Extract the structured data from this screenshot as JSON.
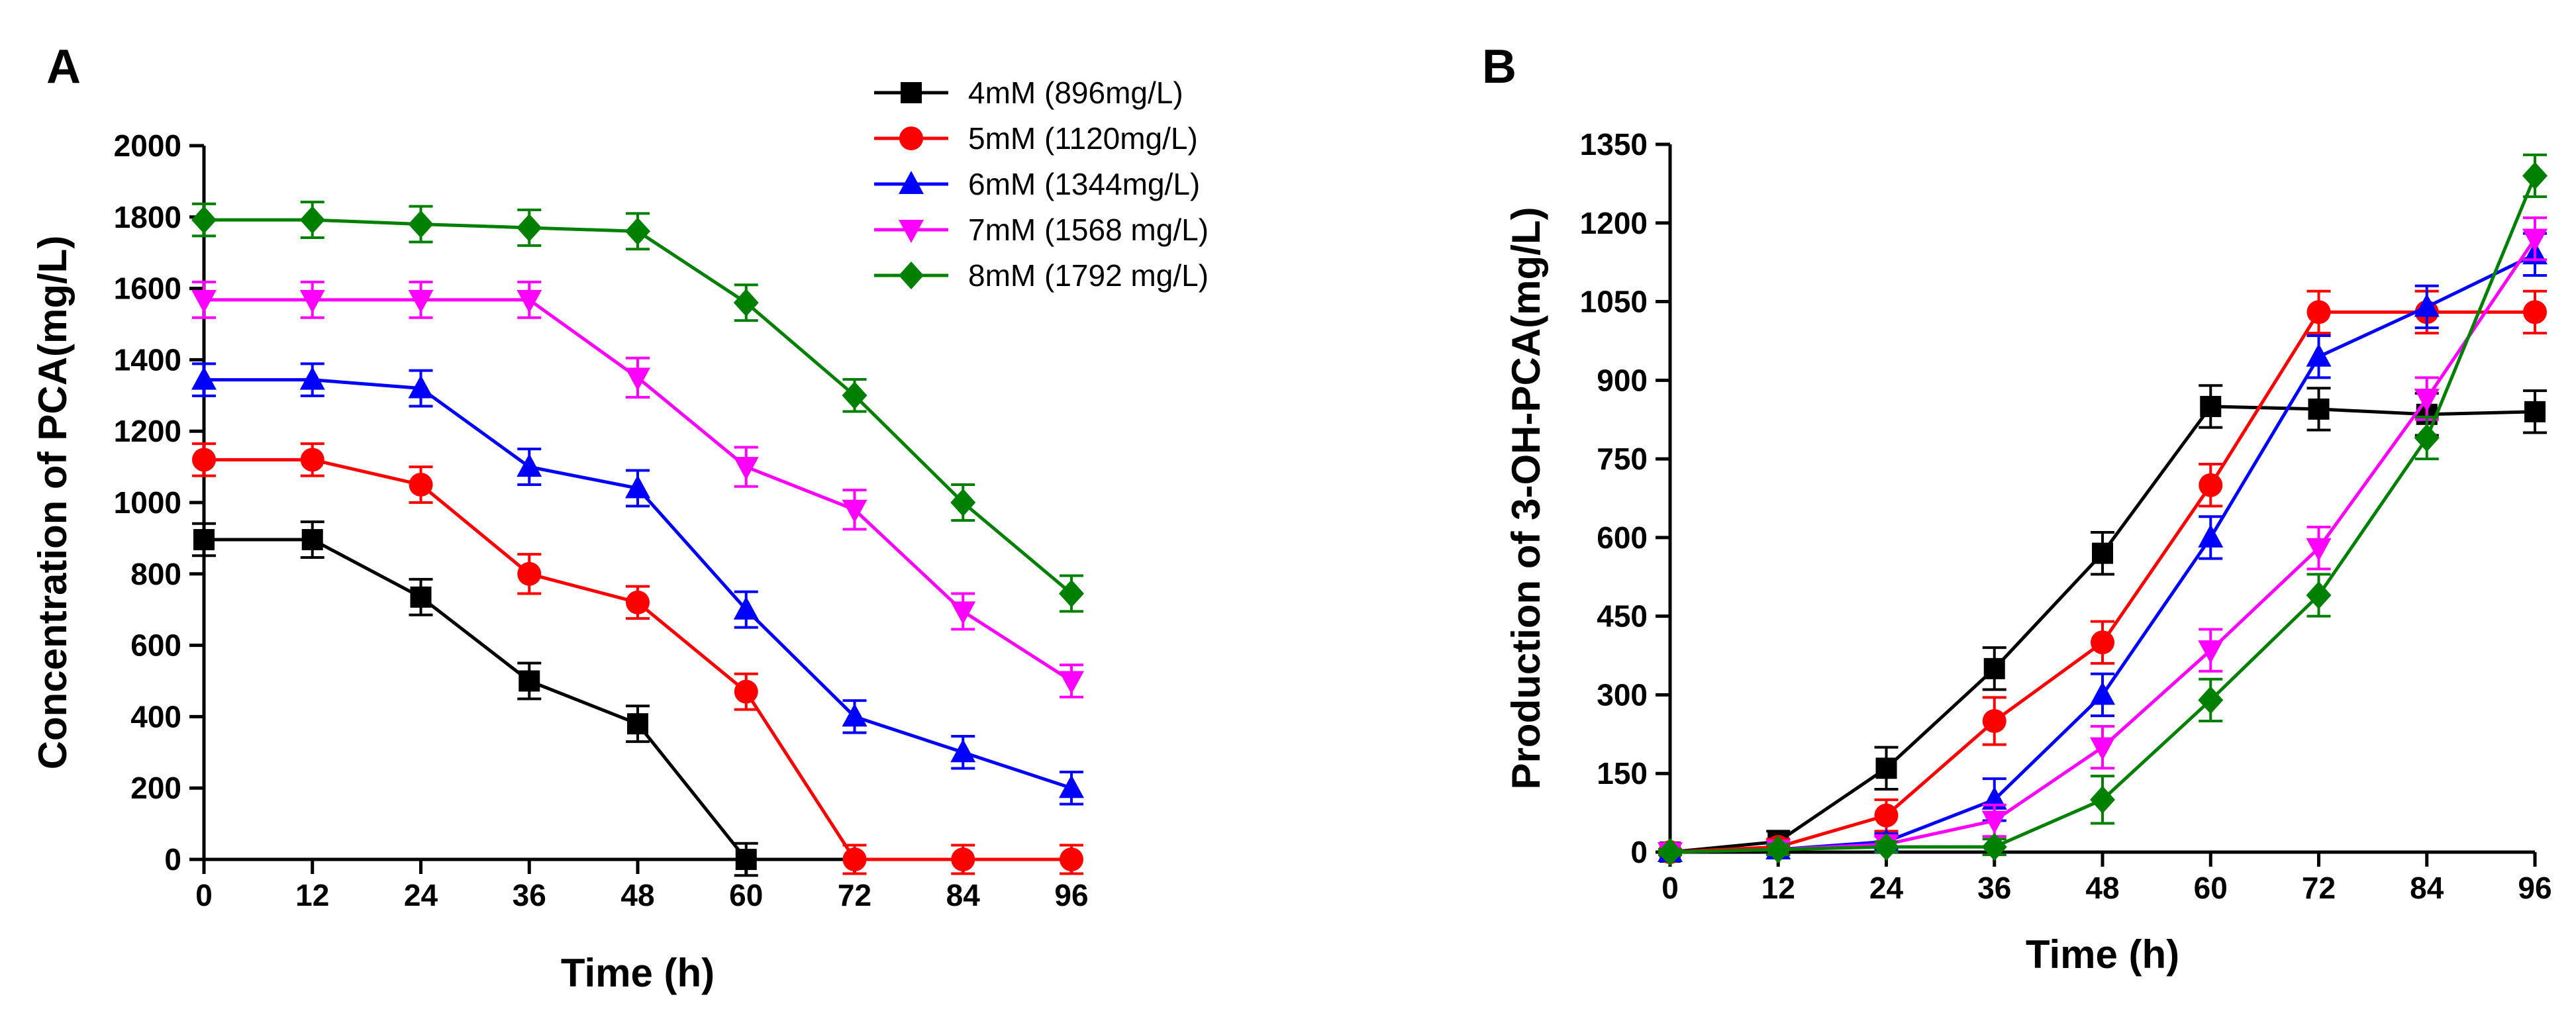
{
  "chart_data": [
    {
      "panel_label": "A",
      "type": "line",
      "xlabel": "Time (h)",
      "ylabel": "Concentration of PCA(mg/L)",
      "x": [
        0,
        12,
        24,
        36,
        48,
        60,
        72,
        84,
        96
      ],
      "xticks": [
        "0",
        "12",
        "24",
        "36",
        "48",
        "60",
        "72",
        "84",
        "96"
      ],
      "xlim": [
        0,
        96
      ],
      "ylim": [
        0,
        2000
      ],
      "yticks": [
        "0",
        "200",
        "400",
        "600",
        "800",
        "1000",
        "1200",
        "1400",
        "1600",
        "1800",
        "2000"
      ],
      "grid": false,
      "legend_position": "top-right",
      "series": [
        {
          "name": "4mM (896mg/L)",
          "color": "#000000",
          "marker": "square",
          "values": [
            896,
            896,
            735,
            500,
            380,
            0,
            null,
            null,
            null
          ],
          "errors": [
            45,
            50,
            50,
            50,
            50,
            45,
            null,
            null,
            null
          ]
        },
        {
          "name": "5mM (1120mg/L)",
          "color": "#ff0000",
          "marker": "circle",
          "values": [
            1120,
            1120,
            1050,
            800,
            720,
            470,
            0,
            0,
            0
          ],
          "errors": [
            45,
            45,
            50,
            55,
            45,
            50,
            40,
            40,
            40
          ]
        },
        {
          "name": "6mM (1344mg/L)",
          "color": "#0000ff",
          "marker": "triangle-up",
          "values": [
            1344,
            1344,
            1320,
            1100,
            1040,
            700,
            400,
            300,
            200
          ],
          "errors": [
            45,
            45,
            50,
            50,
            50,
            50,
            45,
            45,
            45
          ]
        },
        {
          "name": "7mM (1568 mg/L)",
          "color": "#ff00ff",
          "marker": "triangle-down",
          "values": [
            1568,
            1568,
            1568,
            1568,
            1350,
            1100,
            980,
            695,
            500
          ],
          "errors": [
            50,
            50,
            50,
            50,
            55,
            55,
            55,
            50,
            45
          ]
        },
        {
          "name": "8mM (1792 mg/L)",
          "color": "#008000",
          "marker": "diamond",
          "values": [
            1792,
            1792,
            1780,
            1770,
            1760,
            1560,
            1300,
            1000,
            745
          ],
          "errors": [
            45,
            50,
            50,
            50,
            50,
            50,
            45,
            50,
            50
          ]
        }
      ]
    },
    {
      "panel_label": "B",
      "type": "line",
      "xlabel": "Time (h)",
      "ylabel": "Production of 3-OH-PCA(mg/L)",
      "x": [
        0,
        12,
        24,
        36,
        48,
        60,
        72,
        84,
        96
      ],
      "xticks": [
        "0",
        "12",
        "24",
        "36",
        "48",
        "60",
        "72",
        "84",
        "96"
      ],
      "xlim": [
        0,
        96
      ],
      "ylim": [
        0,
        1350
      ],
      "yticks": [
        "0",
        "150",
        "300",
        "450",
        "600",
        "750",
        "900",
        "1050",
        "1200",
        "1350"
      ],
      "grid": false,
      "series": [
        {
          "name": "4mM (896mg/L)",
          "color": "#000000",
          "marker": "square",
          "values": [
            0,
            20,
            160,
            350,
            570,
            850,
            845,
            835,
            840
          ],
          "errors": [
            5,
            20,
            40,
            40,
            40,
            40,
            40,
            40,
            40
          ]
        },
        {
          "name": "5mM (1120mg/L)",
          "color": "#ff0000",
          "marker": "circle",
          "values": [
            0,
            10,
            70,
            250,
            400,
            700,
            1030,
            1030,
            1030
          ],
          "errors": [
            5,
            15,
            30,
            45,
            40,
            40,
            40,
            40,
            40
          ]
        },
        {
          "name": "6mM (1344mg/L)",
          "color": "#0000ff",
          "marker": "triangle-up",
          "values": [
            0,
            5,
            20,
            100,
            300,
            600,
            945,
            1040,
            1140
          ],
          "errors": [
            5,
            10,
            15,
            40,
            40,
            40,
            40,
            40,
            40
          ]
        },
        {
          "name": "7mM (1568 mg/L)",
          "color": "#ff00ff",
          "marker": "triangle-down",
          "values": [
            0,
            5,
            15,
            60,
            200,
            385,
            580,
            865,
            1170
          ],
          "errors": [
            5,
            10,
            15,
            30,
            40,
            40,
            40,
            40,
            40
          ]
        },
        {
          "name": "8mM (1792 mg/L)",
          "color": "#008000",
          "marker": "diamond",
          "values": [
            0,
            5,
            10,
            10,
            100,
            290,
            490,
            790,
            1290
          ],
          "errors": [
            5,
            10,
            10,
            15,
            45,
            40,
            40,
            40,
            40
          ]
        }
      ]
    }
  ]
}
